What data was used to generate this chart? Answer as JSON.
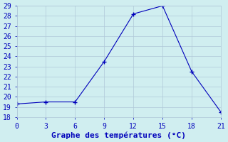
{
  "x": [
    0,
    3,
    6,
    9,
    12,
    15,
    18,
    21
  ],
  "y": [
    19.3,
    19.5,
    19.5,
    23.5,
    28.2,
    29.0,
    22.5,
    18.5
  ],
  "xlabel": "Graphe des températures (°C)",
  "xlim": [
    0,
    21
  ],
  "ylim": [
    18,
    29
  ],
  "yticks": [
    18,
    19,
    20,
    21,
    22,
    23,
    24,
    25,
    26,
    27,
    28,
    29
  ],
  "xticks": [
    0,
    3,
    6,
    9,
    12,
    15,
    18,
    21
  ],
  "line_color": "#0000bb",
  "marker": "+",
  "bg_color": "#d0eef0",
  "grid_color": "#b0c8d8",
  "xlabel_color": "#0000bb",
  "xlabel_fontsize": 8,
  "tick_fontsize": 7
}
